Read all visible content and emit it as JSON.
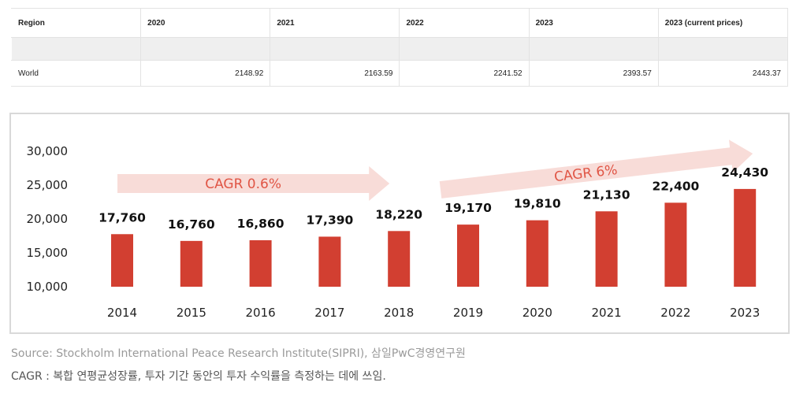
{
  "table": {
    "headers": [
      "Region",
      "2020",
      "2021",
      "2022",
      "2023",
      "2023 (current prices)"
    ],
    "rows": [
      [
        "",
        "",
        "",
        "",
        "",
        ""
      ],
      [
        "World",
        "2148.92",
        "2163.59",
        "2241.52",
        "2393.57",
        "2443.37"
      ]
    ]
  },
  "chart_data": {
    "type": "bar",
    "title": "",
    "xlabel": "",
    "ylabel": "",
    "categories": [
      "2014",
      "2015",
      "2016",
      "2017",
      "2018",
      "2019",
      "2020",
      "2021",
      "2022",
      "2023"
    ],
    "values": [
      17760,
      16760,
      16860,
      17390,
      18220,
      19170,
      19810,
      21130,
      22400,
      24430
    ],
    "data_labels": [
      "17,760",
      "16,760",
      "16,860",
      "17,390",
      "18,220",
      "19,170",
      "19,810",
      "21,130",
      "22,400",
      "24,430"
    ],
    "ylim": [
      10000,
      30000
    ],
    "yticks": [
      10000,
      15000,
      20000,
      25000,
      30000
    ],
    "ytick_labels": [
      "10,000",
      "15,000",
      "20,000",
      "25,000",
      "30,000"
    ],
    "grid": false,
    "bar_color": "#d23f31",
    "annotations": [
      {
        "text": "CAGR 0.6%",
        "from": "2014",
        "to": "2018",
        "kind": "flat-arrow"
      },
      {
        "text": "CAGR 6%",
        "from": "2019",
        "to": "2023",
        "kind": "rising-arrow"
      }
    ],
    "arrow_color": "#f8dcd8",
    "annotation_text_color": "#e05545"
  },
  "footnotes": {
    "source": "Source: Stockholm International Peace Research Institute(SIPRI), 삼일PwC경영연구원",
    "cagr": "CAGR : 복합 연평균성장률, 투자 기간 동안의 투자 수익률을 측정하는 데에 쓰임."
  }
}
